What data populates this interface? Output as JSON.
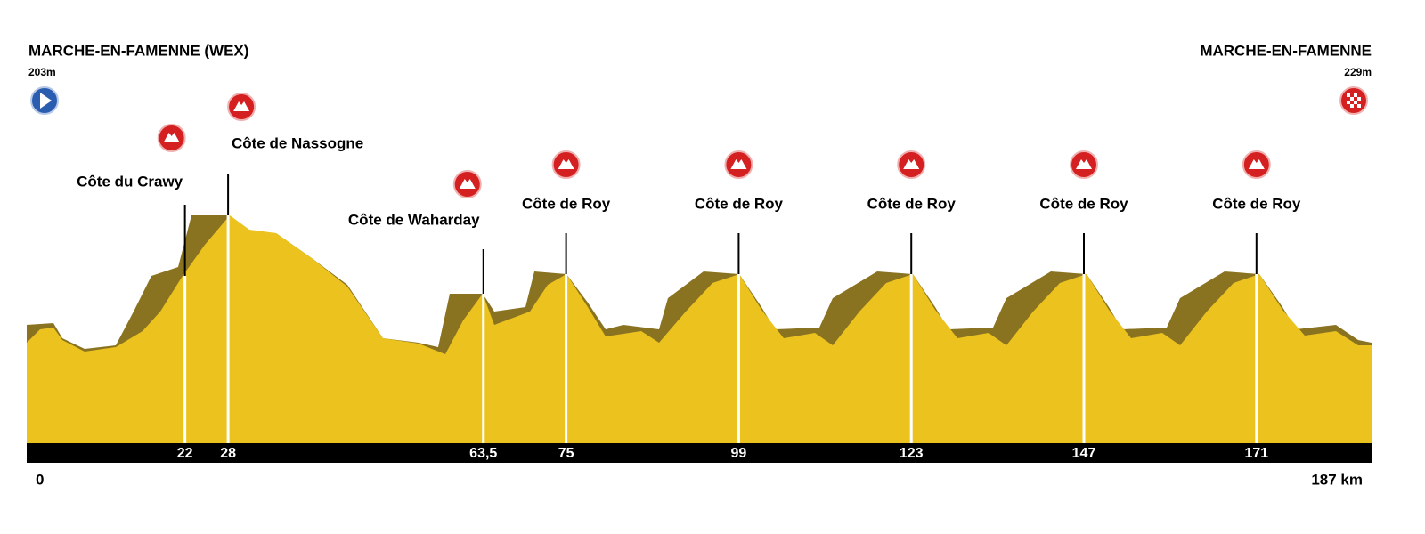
{
  "start": {
    "name": "MARCHE-EN-FAMENNE (WEX)",
    "altitude": "203m",
    "km": 0
  },
  "finish": {
    "name": "MARCHE-EN-FAMENNE",
    "altitude": "229m",
    "km": {
      "value": 187,
      "label": "187 km"
    }
  },
  "climbs": [
    {
      "name": "Côte du Crawy",
      "km": 22
    },
    {
      "name": "Côte de Nassogne",
      "km": 28
    },
    {
      "name": "Côte de Waharday",
      "km": {
        "value": 63.5,
        "label": "63,5"
      }
    },
    {
      "name": "Côte de Roy",
      "km": 75
    },
    {
      "name": "Côte de Roy",
      "km": 99
    },
    {
      "name": "Côte de Roy",
      "km": 123
    },
    {
      "name": "Côte de Roy",
      "km": 147
    },
    {
      "name": "Côte de Roy",
      "km": 171
    }
  ]
}
